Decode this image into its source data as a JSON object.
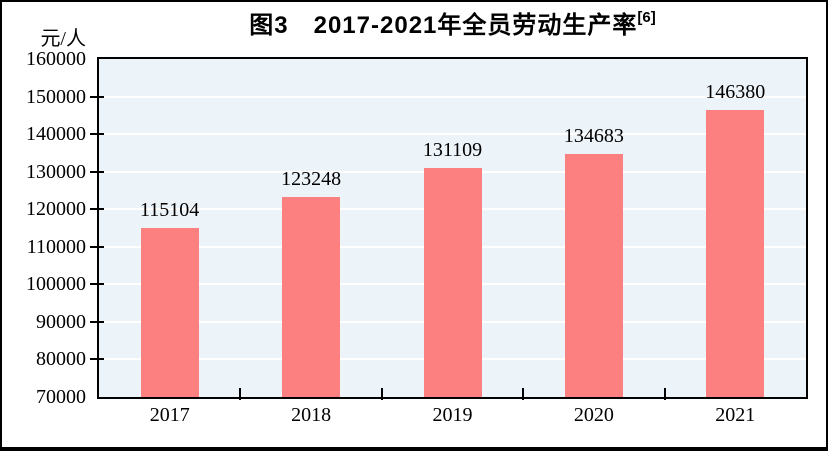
{
  "figure": {
    "unit_label": "元/人"
  },
  "chart_data": {
    "type": "bar",
    "title": "图3　2017-2021年全员劳动生产率",
    "title_superscript": "[6]",
    "ylabel_unit": "元/人",
    "categories": [
      "2017",
      "2018",
      "2019",
      "2020",
      "2021"
    ],
    "values": [
      115104,
      123248,
      131109,
      134683,
      146380
    ],
    "value_labels": [
      "115104",
      "123248",
      "131109",
      "134683",
      "146380"
    ],
    "ylim": [
      70000,
      160000
    ],
    "ytick_step": 10000,
    "ytick_labels": [
      "160000",
      "150000",
      "140000",
      "130000",
      "120000",
      "110000",
      "100000",
      "90000",
      "80000",
      "70000"
    ],
    "grid": true,
    "legend": "none",
    "colors": {
      "bar": "#FC8080",
      "plot_background": "#ECF3F9",
      "gridline": "#FFFFFF",
      "axis": "#000000",
      "text": "#000000",
      "frame": "#000000"
    }
  }
}
